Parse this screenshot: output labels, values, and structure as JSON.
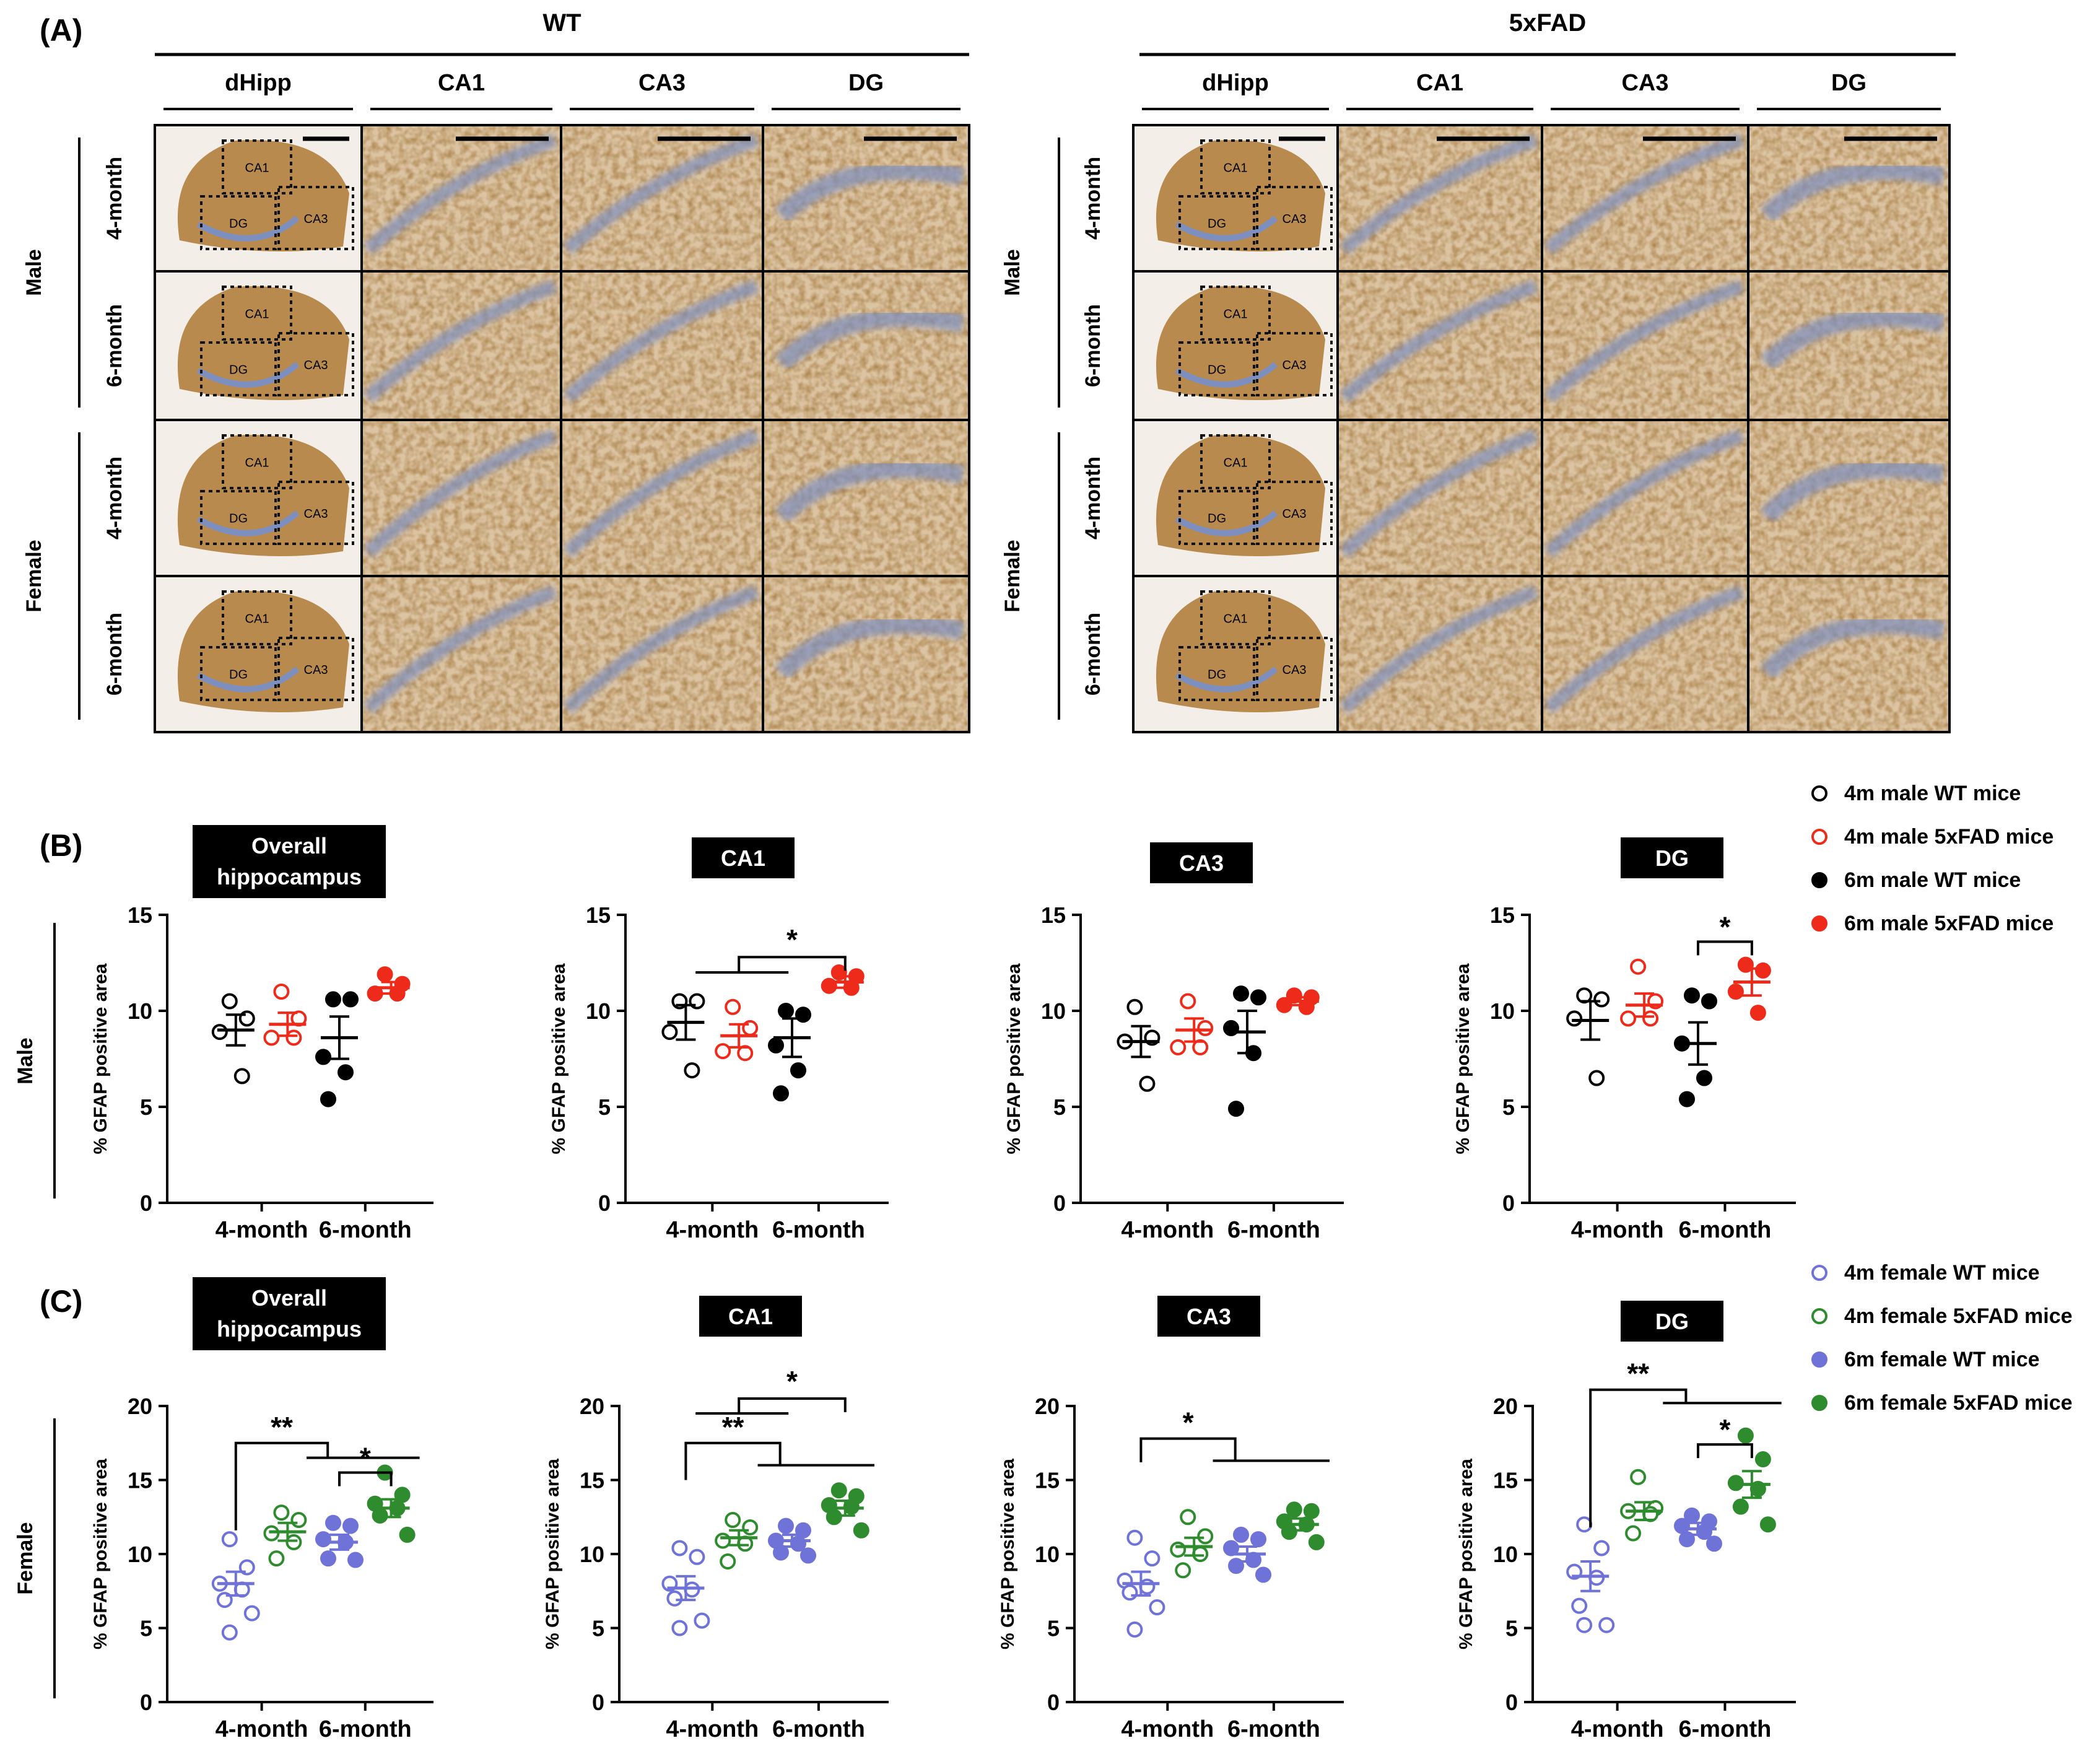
{
  "panel_labels": {
    "a": "(A)",
    "b": "(B)",
    "c": "(C)"
  },
  "panel_a": {
    "groups": [
      "WT",
      "5xFAD"
    ],
    "columns": [
      "dHipp",
      "CA1",
      "CA3",
      "DG"
    ],
    "sexes": [
      "Male",
      "Female"
    ],
    "ages": [
      "4-month",
      "6-month",
      "4-month",
      "6-month"
    ],
    "region_labels": [
      "CA1",
      "DG",
      "CA3"
    ],
    "colors": {
      "tissue": "#b98a4e",
      "tissue_light": "#dcc4a2",
      "layer": "#7d8fbf",
      "background": "#f3eee8"
    }
  },
  "legend_male": [
    "4m male WT mice",
    "4m male 5xFAD mice",
    "6m male WT mice",
    "6m male 5xFAD mice"
  ],
  "legend_female": [
    "4m female WT mice",
    "4m female 5xFAD mice",
    "6m female WT mice",
    "6m female 5xFAD mice"
  ],
  "row_labels": {
    "male": "Male",
    "female": "Female"
  },
  "ylabel": "% GFAP positive area",
  "colors": {
    "wt_male": "#000000",
    "fad_male": "#ee2a1b",
    "wt_female": "#6f73d8",
    "fad_female": "#2e8b2e",
    "title_bg": "#000000",
    "title_fg": "#ffffff"
  },
  "chart_data": [
    {
      "type": "scatter",
      "panel": "B",
      "sex": "male",
      "title": [
        "Overall",
        "hippocampus"
      ],
      "categories": [
        "4-month",
        "6-month"
      ],
      "ylabel": "% GFAP positive area",
      "ylim": [
        0,
        15
      ],
      "yticks": [
        0,
        5,
        10,
        15
      ],
      "series": [
        {
          "name": "4m male WT mice",
          "group": 0,
          "side": "left",
          "filled": false,
          "color_key": "wt_male",
          "values": [
            10.5,
            9.6,
            8.9,
            6.6
          ],
          "mean": 9.0,
          "sem": 0.8
        },
        {
          "name": "4m male 5xFAD mice",
          "group": 0,
          "side": "right",
          "filled": false,
          "color_key": "fad_male",
          "values": [
            11.0,
            9.6,
            8.6,
            8.6
          ],
          "mean": 9.3,
          "sem": 0.6
        },
        {
          "name": "6m male WT mice",
          "group": 1,
          "side": "left",
          "filled": true,
          "color_key": "wt_male",
          "values": [
            10.6,
            10.6,
            7.6,
            6.8,
            5.4
          ],
          "mean": 8.6,
          "sem": 1.1
        },
        {
          "name": "6m male 5xFAD mice",
          "group": 1,
          "side": "right",
          "filled": true,
          "color_key": "fad_male",
          "values": [
            11.9,
            11.4,
            10.9,
            10.9
          ],
          "mean": 11.2,
          "sem": 0.3
        }
      ],
      "brackets": []
    },
    {
      "type": "scatter",
      "panel": "B",
      "sex": "male",
      "title": [
        "CA1"
      ],
      "categories": [
        "4-month",
        "6-month"
      ],
      "ylabel": "% GFAP positive area",
      "ylim": [
        0,
        15
      ],
      "yticks": [
        0,
        5,
        10,
        15
      ],
      "series": [
        {
          "name": "4m male WT mice",
          "group": 0,
          "side": "left",
          "filled": false,
          "color_key": "wt_male",
          "values": [
            10.5,
            10.5,
            8.9,
            6.9
          ],
          "mean": 9.4,
          "sem": 0.9
        },
        {
          "name": "4m male 5xFAD mice",
          "group": 0,
          "side": "right",
          "filled": false,
          "color_key": "fad_male",
          "values": [
            10.2,
            9.1,
            7.9,
            7.8
          ],
          "mean": 8.7,
          "sem": 0.6
        },
        {
          "name": "6m male WT mice",
          "group": 1,
          "side": "left",
          "filled": true,
          "color_key": "wt_male",
          "values": [
            10.0,
            9.8,
            8.2,
            6.9,
            5.7
          ],
          "mean": 8.6,
          "sem": 1.0
        },
        {
          "name": "6m male 5xFAD mice",
          "group": 1,
          "side": "right",
          "filled": true,
          "color_key": "fad_male",
          "values": [
            12.0,
            11.8,
            11.3,
            11.2
          ],
          "mean": 11.5,
          "sem": 0.3
        }
      ],
      "brackets": [
        {
          "type": "split",
          "from": [
            0,
            1
          ],
          "to": [
            1,
            1
          ],
          "y": 12.8,
          "stem": 0.8,
          "label": "*"
        }
      ]
    },
    {
      "type": "scatter",
      "panel": "B",
      "sex": "male",
      "title": [
        "CA3"
      ],
      "categories": [
        "4-month",
        "6-month"
      ],
      "ylabel": "% GFAP positive area",
      "ylim": [
        0,
        15
      ],
      "yticks": [
        0,
        5,
        10,
        15
      ],
      "series": [
        {
          "name": "4m male WT mice",
          "group": 0,
          "side": "left",
          "filled": false,
          "color_key": "wt_male",
          "values": [
            10.2,
            8.6,
            8.4,
            6.2
          ],
          "mean": 8.4,
          "sem": 0.8
        },
        {
          "name": "4m male 5xFAD mice",
          "group": 0,
          "side": "right",
          "filled": false,
          "color_key": "fad_male",
          "values": [
            10.5,
            9.1,
            8.1,
            8.1
          ],
          "mean": 9.0,
          "sem": 0.6
        },
        {
          "name": "6m male WT mice",
          "group": 1,
          "side": "left",
          "filled": true,
          "color_key": "wt_male",
          "values": [
            10.9,
            10.7,
            9.1,
            7.8,
            4.9
          ],
          "mean": 8.9,
          "sem": 1.1
        },
        {
          "name": "6m male 5xFAD mice",
          "group": 1,
          "side": "right",
          "filled": true,
          "color_key": "fad_male",
          "values": [
            10.8,
            10.7,
            10.3,
            10.2
          ],
          "mean": 10.5,
          "sem": 0.2
        }
      ],
      "brackets": []
    },
    {
      "type": "scatter",
      "panel": "B",
      "sex": "male",
      "title": [
        "DG"
      ],
      "categories": [
        "4-month",
        "6-month"
      ],
      "ylabel": "% GFAP positive area",
      "ylim": [
        0,
        15
      ],
      "yticks": [
        0,
        5,
        10,
        15
      ],
      "series": [
        {
          "name": "4m male WT mice",
          "group": 0,
          "side": "left",
          "filled": false,
          "color_key": "wt_male",
          "values": [
            10.8,
            10.6,
            9.6,
            6.5
          ],
          "mean": 9.5,
          "sem": 1.0
        },
        {
          "name": "4m male 5xFAD mice",
          "group": 0,
          "side": "right",
          "filled": false,
          "color_key": "fad_male",
          "values": [
            12.3,
            10.5,
            9.6,
            9.6
          ],
          "mean": 10.3,
          "sem": 0.6
        },
        {
          "name": "6m male WT mice",
          "group": 1,
          "side": "left",
          "filled": true,
          "color_key": "wt_male",
          "values": [
            10.8,
            10.5,
            8.3,
            6.5,
            5.4
          ],
          "mean": 8.3,
          "sem": 1.1
        },
        {
          "name": "6m male 5xFAD mice",
          "group": 1,
          "side": "right",
          "filled": true,
          "color_key": "fad_male",
          "values": [
            12.4,
            12.1,
            11.0,
            9.9
          ],
          "mean": 11.5,
          "sem": 0.7
        }
      ],
      "brackets": [
        {
          "type": "simple",
          "from": [
            1,
            0
          ],
          "to": [
            1,
            1
          ],
          "y": 13.6,
          "label": "*"
        }
      ]
    },
    {
      "type": "scatter",
      "panel": "C",
      "sex": "female",
      "title": [
        "Overall",
        "hippocampus"
      ],
      "categories": [
        "4-month",
        "6-month"
      ],
      "ylabel": "% GFAP positive area",
      "ylim": [
        0,
        20
      ],
      "yticks": [
        0,
        5,
        10,
        15,
        20
      ],
      "series": [
        {
          "name": "4m female WT mice",
          "group": 0,
          "side": "left",
          "filled": false,
          "color_key": "wt_female",
          "values": [
            11.0,
            9.1,
            8.0,
            7.6,
            6.9,
            6.0,
            4.7
          ],
          "mean": 8.0,
          "sem": 0.8
        },
        {
          "name": "4m female 5xFAD mice",
          "group": 0,
          "side": "right",
          "filled": false,
          "color_key": "fad_female",
          "values": [
            12.8,
            12.3,
            11.4,
            10.8,
            9.7
          ],
          "mean": 11.5,
          "sem": 0.6
        },
        {
          "name": "6m female WT mice",
          "group": 1,
          "side": "left",
          "filled": true,
          "color_key": "wt_female",
          "values": [
            12.1,
            11.9,
            11.0,
            10.8,
            9.7,
            9.6
          ],
          "mean": 10.8,
          "sem": 0.5
        },
        {
          "name": "6m female 5xFAD mice",
          "group": 1,
          "side": "right",
          "filled": true,
          "color_key": "fad_female",
          "values": [
            15.5,
            14.0,
            13.4,
            13.1,
            12.6,
            11.3
          ],
          "mean": 13.1,
          "sem": 0.6
        }
      ],
      "brackets": [
        {
          "type": "split",
          "from": [
            0,
            0
          ],
          "to": [
            1,
            0.5
          ],
          "y": 17.5,
          "stem": 1.0,
          "label": "**",
          "left_drop": 11.6
        },
        {
          "type": "simple",
          "from": [
            1,
            0
          ],
          "to": [
            1,
            1
          ],
          "y": 15.5,
          "label": "*"
        }
      ]
    },
    {
      "type": "scatter",
      "panel": "C",
      "sex": "female",
      "title": [
        "CA1"
      ],
      "categories": [
        "4-month",
        "6-month"
      ],
      "ylabel": "% GFAP positive area",
      "ylim": [
        0,
        20
      ],
      "yticks": [
        0,
        5,
        10,
        15,
        20
      ],
      "series": [
        {
          "name": "4m female WT mice",
          "group": 0,
          "side": "left",
          "filled": false,
          "color_key": "wt_female",
          "values": [
            10.4,
            9.8,
            8.0,
            7.6,
            7.0,
            5.5,
            5.0
          ],
          "mean": 7.7,
          "sem": 0.8
        },
        {
          "name": "4m female 5xFAD mice",
          "group": 0,
          "side": "right",
          "filled": false,
          "color_key": "fad_female",
          "values": [
            12.3,
            11.8,
            10.9,
            10.7,
            9.5
          ],
          "mean": 11.1,
          "sem": 0.5
        },
        {
          "name": "6m female WT mice",
          "group": 1,
          "side": "left",
          "filled": true,
          "color_key": "wt_female",
          "values": [
            11.9,
            11.6,
            10.9,
            10.7,
            10.1,
            9.9
          ],
          "mean": 10.9,
          "sem": 0.4
        },
        {
          "name": "6m female 5xFAD mice",
          "group": 1,
          "side": "right",
          "filled": true,
          "color_key": "fad_female",
          "values": [
            14.3,
            13.9,
            13.3,
            13.2,
            12.5,
            11.6
          ],
          "mean": 13.1,
          "sem": 0.5
        }
      ],
      "brackets": [
        {
          "type": "split",
          "from": [
            0,
            0
          ],
          "to": [
            1,
            0.5
          ],
          "y": 17.5,
          "stem": 1.5,
          "label": "**",
          "left_drop": 15.0
        },
        {
          "type": "split",
          "from": [
            0,
            1
          ],
          "to": [
            1,
            1
          ],
          "y": 20.5,
          "stem": 1.0,
          "label": "*"
        }
      ]
    },
    {
      "type": "scatter",
      "panel": "C",
      "sex": "female",
      "title": [
        "CA3"
      ],
      "categories": [
        "4-month",
        "6-month"
      ],
      "ylabel": "% GFAP positive area",
      "ylim": [
        0,
        20
      ],
      "yticks": [
        0,
        5,
        10,
        15,
        20
      ],
      "series": [
        {
          "name": "4m female WT mice",
          "group": 0,
          "side": "left",
          "filled": false,
          "color_key": "wt_female",
          "values": [
            11.1,
            9.7,
            8.2,
            7.8,
            7.4,
            6.4,
            4.9
          ],
          "mean": 8.0,
          "sem": 0.8
        },
        {
          "name": "4m female 5xFAD mice",
          "group": 0,
          "side": "right",
          "filled": false,
          "color_key": "fad_female",
          "values": [
            12.5,
            11.2,
            10.3,
            10.0,
            8.9
          ],
          "mean": 10.5,
          "sem": 0.6
        },
        {
          "name": "6m female WT mice",
          "group": 1,
          "side": "left",
          "filled": true,
          "color_key": "wt_female",
          "values": [
            11.3,
            11.0,
            10.4,
            9.6,
            9.2,
            8.6
          ],
          "mean": 10.0,
          "sem": 0.5
        },
        {
          "name": "6m female 5xFAD mice",
          "group": 1,
          "side": "right",
          "filled": true,
          "color_key": "fad_female",
          "values": [
            13.0,
            12.9,
            12.2,
            12.0,
            11.5,
            10.8
          ],
          "mean": 12.0,
          "sem": 0.4
        }
      ],
      "brackets": [
        {
          "type": "split",
          "from": [
            0,
            0
          ],
          "to": [
            1,
            0.5
          ],
          "y": 17.8,
          "stem": 1.5,
          "label": "*",
          "left_drop": 16.2
        }
      ]
    },
    {
      "type": "scatter",
      "panel": "C",
      "sex": "female",
      "title": [
        "DG"
      ],
      "categories": [
        "4-month",
        "6-month"
      ],
      "ylabel": "% GFAP positive area",
      "ylim": [
        0,
        20
      ],
      "yticks": [
        0,
        5,
        10,
        15,
        20
      ],
      "series": [
        {
          "name": "4m female WT mice",
          "group": 0,
          "side": "left",
          "filled": false,
          "color_key": "wt_female",
          "values": [
            12.0,
            10.4,
            8.8,
            8.4,
            6.5,
            5.2,
            5.2
          ],
          "mean": 8.5,
          "sem": 1.0
        },
        {
          "name": "4m female 5xFAD mice",
          "group": 0,
          "side": "right",
          "filled": false,
          "color_key": "fad_female",
          "values": [
            15.2,
            13.1,
            12.9,
            12.7,
            11.4
          ],
          "mean": 12.9,
          "sem": 0.6
        },
        {
          "name": "6m female WT mice",
          "group": 1,
          "side": "left",
          "filled": true,
          "color_key": "wt_female",
          "values": [
            12.6,
            12.2,
            11.9,
            11.5,
            11.0,
            10.7
          ],
          "mean": 11.7,
          "sem": 0.4
        },
        {
          "name": "6m female 5xFAD mice",
          "group": 1,
          "side": "right",
          "filled": true,
          "color_key": "fad_female",
          "values": [
            18.0,
            16.4,
            14.8,
            14.4,
            13.2,
            12.0
          ],
          "mean": 14.7,
          "sem": 0.9
        }
      ],
      "brackets": [
        {
          "type": "split",
          "from": [
            0,
            0
          ],
          "to": [
            1,
            0.5
          ],
          "y": 21.1,
          "stem": 0.9,
          "label": "**",
          "left_drop": 11.8
        },
        {
          "type": "simple",
          "from": [
            1,
            0
          ],
          "to": [
            1,
            1
          ],
          "y": 17.4,
          "label": "*"
        }
      ]
    }
  ]
}
